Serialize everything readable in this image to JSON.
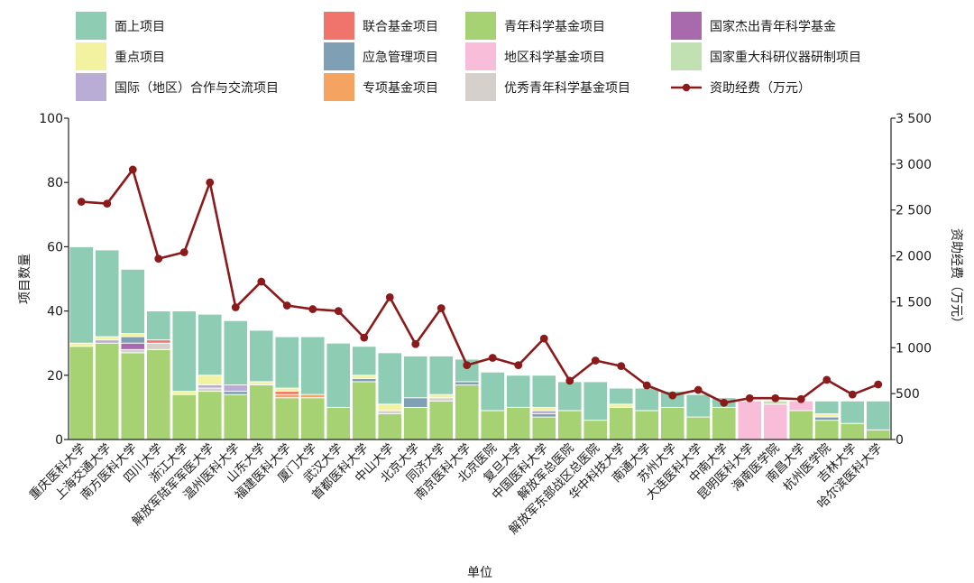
{
  "chart_data": {
    "type": "bar",
    "stacked": true,
    "xlabel": "单位",
    "ylabel": "项目数量",
    "y2label": "资助经费（万元）",
    "ylim": [
      0,
      100
    ],
    "yticks": [
      "0",
      "20",
      "40",
      "60",
      "80",
      "100"
    ],
    "y2lim": [
      0,
      3500
    ],
    "y2ticks": [
      "0",
      "500",
      "1 000",
      "1 500",
      "2 000",
      "2 500",
      "3 000",
      "3 500"
    ],
    "legend_position": "top",
    "categories": [
      "重庆医科大学",
      "上海交通大学",
      "南方医科大学",
      "四川大学",
      "浙江大学",
      "解放军陆军军医大学",
      "温州医科大学",
      "山东大学",
      "福建医科大学",
      "厦门大学",
      "武汉大学",
      "首都医科大学",
      "中山大学",
      "北京大学",
      "同济大学",
      "南京医科大学",
      "北京医院",
      "复旦大学",
      "中国医科大学",
      "解放军总医院",
      "解放军东部战区总医院",
      "华中科技大学",
      "南通大学",
      "苏州大学",
      "大连医科大学",
      "中南大学",
      "昆明医科大学",
      "海南医学院",
      "南昌大学",
      "杭州医学院",
      "吉林大学",
      "哈尔滨医科大学"
    ],
    "series": [
      {
        "name": "青年科学基金项目",
        "color": "#a6d273",
        "values": [
          29,
          30,
          27,
          28,
          14,
          15,
          14,
          17,
          13,
          13,
          10,
          18,
          8,
          10,
          12,
          17,
          9,
          10,
          7,
          9,
          6,
          10,
          9,
          10,
          7,
          10,
          0,
          0,
          9,
          6,
          5,
          3
        ]
      },
      {
        "name": "地区科学基金项目",
        "color": "#f7bdd9",
        "values": [
          0,
          0,
          0,
          0,
          0,
          0,
          0,
          0,
          0,
          0,
          0,
          0,
          0,
          0,
          0,
          0,
          0,
          0,
          0,
          0,
          0,
          0,
          0,
          0,
          0,
          0,
          12,
          11,
          3,
          0,
          0,
          0
        ]
      },
      {
        "name": "优秀青年科学基金项目",
        "color": "#d5d0cc",
        "values": [
          0,
          0,
          1,
          2,
          0,
          1,
          0,
          0,
          0,
          0,
          0,
          0,
          1,
          0,
          1,
          0,
          0,
          0,
          0,
          0,
          0,
          0,
          0,
          0,
          0,
          0,
          0,
          0,
          0,
          0,
          0,
          0
        ]
      },
      {
        "name": "国家杰出青年科学基金",
        "color": "#a86aac",
        "values": [
          0,
          0,
          2,
          0,
          0,
          0,
          0,
          0,
          0,
          0,
          0,
          0,
          0,
          0,
          0,
          0,
          0,
          0,
          0,
          0,
          0,
          0,
          0,
          0,
          0,
          0,
          0,
          0,
          0,
          0,
          0,
          0
        ]
      },
      {
        "name": "国家重大科研仪器研制项目",
        "color": "#c2e1b2",
        "values": [
          0,
          0,
          0,
          0,
          0,
          0,
          0,
          0,
          0,
          0,
          0,
          0,
          0,
          0,
          0,
          0,
          0,
          0,
          0,
          0,
          0,
          0,
          0,
          0,
          0,
          0,
          0,
          1,
          0,
          0,
          0,
          0
        ]
      },
      {
        "name": "应急管理项目",
        "color": "#7f9fb5",
        "values": [
          0,
          0,
          2,
          0,
          0,
          0,
          1,
          0,
          0,
          0,
          0,
          1,
          0,
          3,
          0,
          1,
          0,
          0,
          1,
          0,
          0,
          0,
          0,
          0,
          0,
          0,
          0,
          0,
          0,
          1,
          0,
          0
        ]
      },
      {
        "name": "专项基金项目",
        "color": "#f4a460",
        "values": [
          0,
          0,
          0,
          0,
          0,
          0,
          0,
          0,
          1,
          1,
          0,
          0,
          0,
          0,
          0,
          0,
          0,
          0,
          0,
          0,
          0,
          0,
          0,
          0,
          0,
          0,
          0,
          0,
          0,
          0,
          0,
          0
        ]
      },
      {
        "name": "联合基金项目",
        "color": "#f0736c",
        "values": [
          0,
          0,
          0,
          1,
          0,
          0,
          0,
          0,
          1,
          0,
          0,
          0,
          0,
          0,
          0,
          0,
          0,
          0,
          0,
          0,
          0,
          0,
          0,
          0,
          0,
          0,
          0,
          0,
          0,
          0,
          0,
          0
        ]
      },
      {
        "name": "国际（地区）合作与交流项目",
        "color": "#b9acd5",
        "values": [
          0,
          1,
          0,
          0,
          0,
          1,
          2,
          0,
          0,
          0,
          0,
          0,
          0,
          0,
          0,
          0,
          0,
          0,
          1,
          0,
          0,
          0,
          0,
          0,
          0,
          0,
          0,
          0,
          0,
          0,
          0,
          0
        ]
      },
      {
        "name": "重点项目",
        "color": "#f2f2a0",
        "values": [
          1,
          1,
          1,
          0,
          1,
          3,
          0,
          1,
          1,
          0,
          0,
          1,
          2,
          0,
          1,
          0,
          0,
          0,
          1,
          0,
          0,
          1,
          0,
          0,
          0,
          0,
          0,
          0,
          0,
          1,
          0,
          0
        ]
      },
      {
        "name": "面上项目",
        "color": "#8ecdb4",
        "values": [
          30,
          27,
          20,
          9,
          25,
          19,
          20,
          16,
          16,
          18,
          20,
          9,
          16,
          13,
          12,
          7,
          12,
          10,
          10,
          9,
          12,
          5,
          7,
          5,
          7,
          3,
          0,
          0,
          0,
          4,
          7,
          9
        ]
      }
    ],
    "funding": {
      "name": "资助经费（万元）",
      "color": "#8b1a1a",
      "values": [
        2590,
        2570,
        2940,
        1970,
        2040,
        2800,
        1440,
        1720,
        1460,
        1420,
        1400,
        1110,
        1550,
        1040,
        1430,
        810,
        890,
        810,
        1100,
        640,
        860,
        800,
        590,
        480,
        540,
        400,
        450,
        450,
        440,
        650,
        490,
        600
      ]
    }
  },
  "legend": [
    {
      "label": "面上项目",
      "kind": "swatch",
      "color": "#8ecdb4"
    },
    {
      "label": "联合基金项目",
      "kind": "swatch",
      "color": "#f0736c"
    },
    {
      "label": "青年科学基金项目",
      "kind": "swatch",
      "color": "#a6d273"
    },
    {
      "label": "国家杰出青年科学基金",
      "kind": "swatch",
      "color": "#a86aac"
    },
    {
      "label": "重点项目",
      "kind": "swatch",
      "color": "#f2f2a0"
    },
    {
      "label": "应急管理项目",
      "kind": "swatch",
      "color": "#7f9fb5"
    },
    {
      "label": "地区科学基金项目",
      "kind": "swatch",
      "color": "#f7bdd9"
    },
    {
      "label": "国家重大科研仪器研制项目",
      "kind": "swatch",
      "color": "#c2e1b2"
    },
    {
      "label": "国际（地区）合作与交流项目",
      "kind": "swatch",
      "color": "#b9acd5"
    },
    {
      "label": "专项基金项目",
      "kind": "swatch",
      "color": "#f4a460"
    },
    {
      "label": "优秀青年科学基金项目",
      "kind": "swatch",
      "color": "#d5d0cc"
    },
    {
      "label": "资助经费（万元）",
      "kind": "line",
      "color": "#8b1a1a"
    }
  ]
}
